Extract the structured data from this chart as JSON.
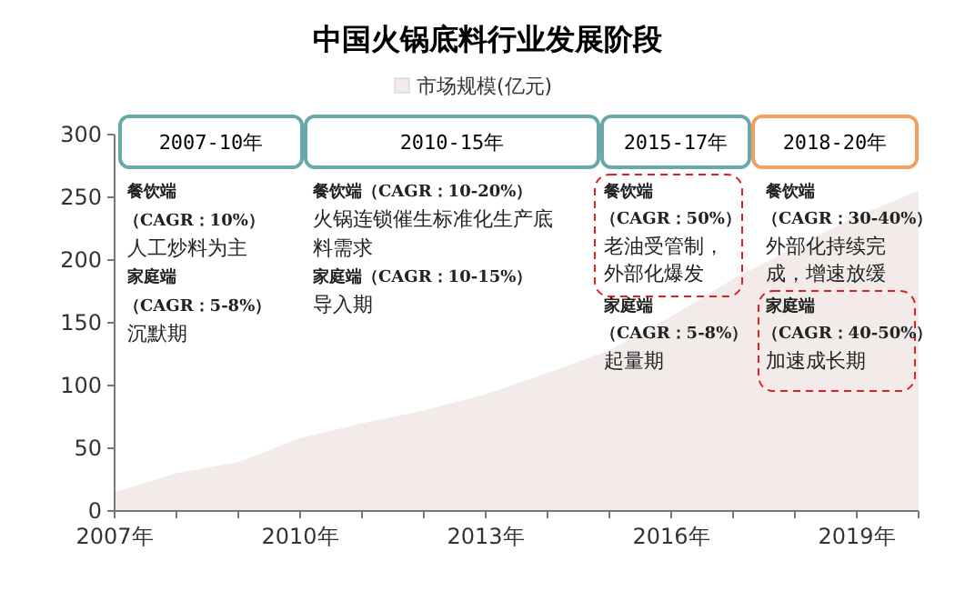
{
  "chart_data": {
    "type": "area",
    "title": "中国火锅底料行业发展阶段",
    "x": [
      2007,
      2008,
      2009,
      2010,
      2011,
      2012,
      2013,
      2014,
      2015,
      2016,
      2017,
      2018,
      2019,
      2020
    ],
    "series": [
      {
        "name": "市场规模(亿元)",
        "color": "#f3ebea",
        "values": [
          15,
          30,
          39,
          58,
          70,
          80,
          93,
          110,
          128,
          155,
          185,
          210,
          235,
          255
        ]
      }
    ],
    "xlim": [
      2007,
      2020
    ],
    "xticks": [
      {
        "value": 2007,
        "label": "2007年"
      },
      {
        "value": 2008,
        "label": null
      },
      {
        "value": 2009,
        "label": null
      },
      {
        "value": 2010,
        "label": "2010年"
      },
      {
        "value": 2011,
        "label": null
      },
      {
        "value": 2012,
        "label": null
      },
      {
        "value": 2013,
        "label": "2013年"
      },
      {
        "value": 2014,
        "label": null
      },
      {
        "value": 2015,
        "label": null
      },
      {
        "value": 2016,
        "label": "2016年"
      },
      {
        "value": 2017,
        "label": null
      },
      {
        "value": 2018,
        "label": null
      },
      {
        "value": 2019,
        "label": "2019年"
      },
      {
        "value": 2020,
        "label": null
      }
    ],
    "ylim": [
      0,
      300
    ],
    "yticks": [
      0,
      50,
      100,
      150,
      200,
      250,
      300
    ],
    "grid": false,
    "legend": "top",
    "annotations": [
      "2007-10年",
      "2010-15年",
      "2015-17年",
      "2018-20年",
      "餐饮端",
      "（CAGR：10%）",
      "人工炒料为主",
      "家庭端",
      "（CAGR：5-8%）",
      "沉默期",
      "餐饮端（CAGR：10-20%）",
      "火锅连锁催生标准化生产底",
      "料需求",
      "家庭端（CAGR：10-15%）",
      "导入期",
      "餐饮端",
      "（CAGR：50%）",
      "老油受管制，",
      "外部化爆发",
      "家庭端",
      "（CAGR：5-8%）",
      "起量期",
      "餐饮端",
      "（CAGR：30-40%）",
      "外部化持续完",
      "成，增速放缓",
      "家庭端",
      "（CAGR：40-50%）",
      "加速成长期"
    ]
  }
}
